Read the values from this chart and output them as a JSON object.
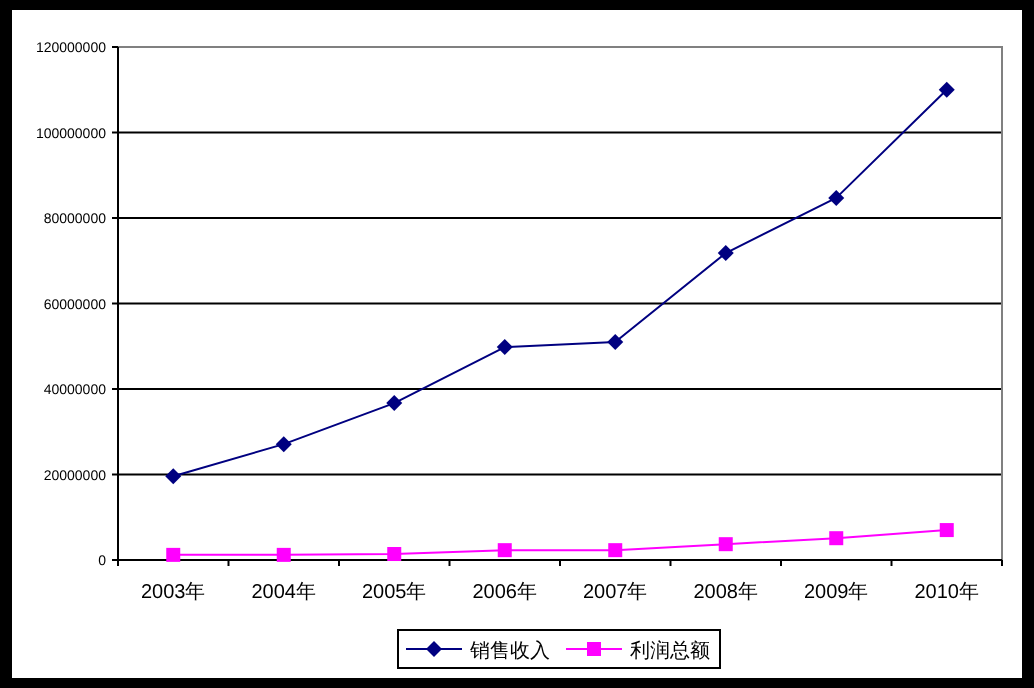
{
  "chart_data": {
    "type": "line",
    "categories": [
      "2003年",
      "2004年",
      "2005年",
      "2006年",
      "2007年",
      "2008年",
      "2009年",
      "2010年"
    ],
    "series": [
      {
        "name": "销售收入",
        "color": "#000080",
        "marker": "diamond",
        "values": [
          19600000,
          27100000,
          36700000,
          49800000,
          51000000,
          71800000,
          84700000,
          110000000
        ]
      },
      {
        "name": "利润总额",
        "color": "#ff00ff",
        "marker": "square",
        "values": [
          1200000,
          1200000,
          1400000,
          2300000,
          2300000,
          3700000,
          5100000,
          7000000
        ]
      }
    ],
    "ylim": [
      0,
      120000000
    ],
    "yticks": [
      0,
      20000000,
      40000000,
      60000000,
      80000000,
      100000000,
      120000000
    ],
    "grid": "y",
    "legend": "bottom"
  }
}
